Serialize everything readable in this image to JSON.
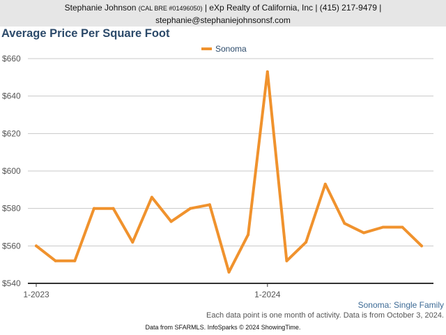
{
  "header": {
    "agent_name": "Stephanie Johnson",
    "license": "(CAL BRE #01496050)",
    "company_info": "| eXp Realty of California, Inc | (415) 217-9479 |",
    "email": "stephanie@stephaniejohnsonsf.com"
  },
  "chart_subtitle": "Sonoma: Single Family",
  "footnote": "Each data point is one month of activity. Data is from October 3, 2024.",
  "source": "Data from SFARMLS. InfoSparks © 2024 ShowingTime.",
  "colors": {
    "series": "#f0922d",
    "title": "#2c4a6a",
    "grid": "#c8c8c8"
  },
  "chart_data": {
    "type": "line",
    "title": "Average Price Per Square Foot",
    "x": [
      "2023-01",
      "2023-02",
      "2023-03",
      "2023-04",
      "2023-05",
      "2023-06",
      "2023-07",
      "2023-08",
      "2023-09",
      "2023-10",
      "2023-11",
      "2023-12",
      "2024-01",
      "2024-02",
      "2024-03",
      "2024-04",
      "2024-05",
      "2024-06",
      "2024-07",
      "2024-08",
      "2024-09"
    ],
    "series": [
      {
        "name": "Sonoma",
        "values": [
          560,
          552,
          552,
          580,
          580,
          562,
          586,
          573,
          580,
          582,
          546,
          566,
          653,
          552,
          562,
          593,
          572,
          567,
          570,
          570,
          560
        ]
      }
    ],
    "xtick_labels": [
      "1-2023",
      "1-2024"
    ],
    "ytick_labels": [
      "$540",
      "$560",
      "$580",
      "$600",
      "$620",
      "$640",
      "$660"
    ],
    "ylim": [
      540,
      660
    ],
    "grid": true,
    "legend": "top-center"
  }
}
